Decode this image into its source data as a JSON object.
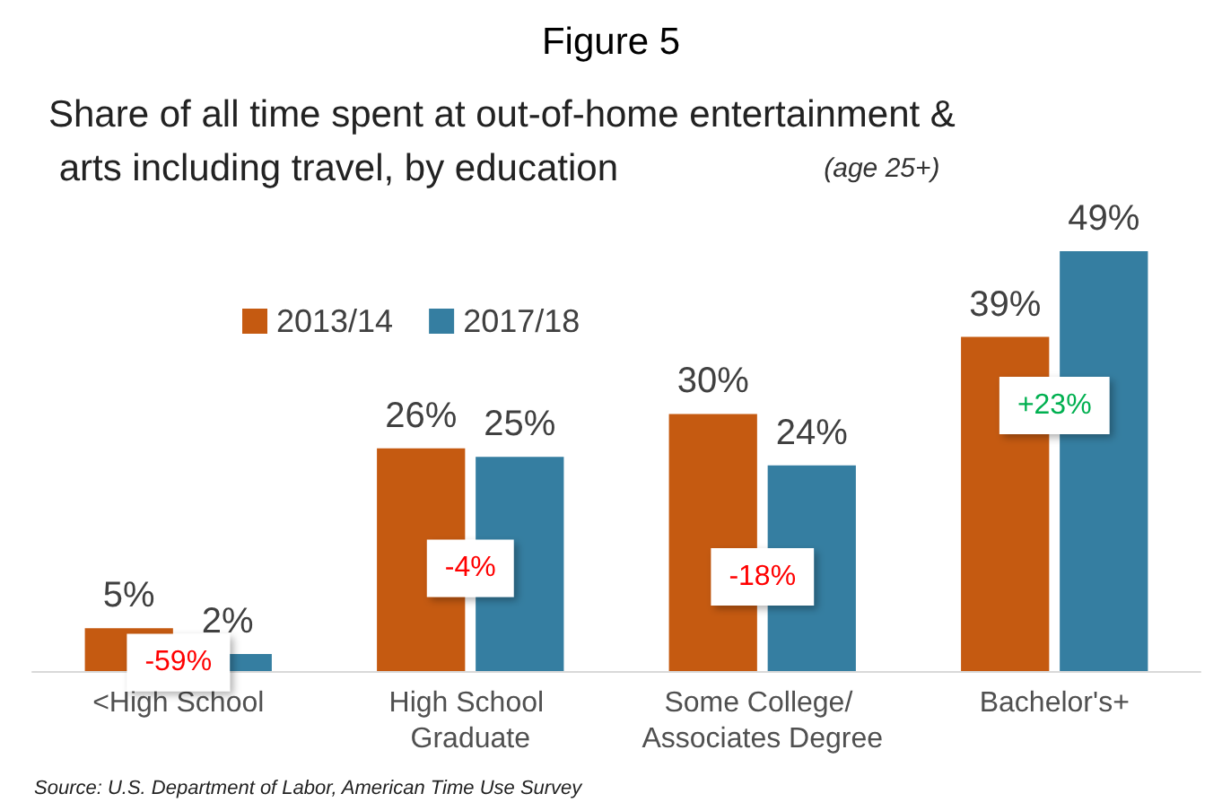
{
  "chart_data": {
    "type": "bar",
    "title": "Figure 5",
    "subtitle": "Share of all time spent at out-of-home entertainment & arts including travel, by education (age 25+)",
    "categories": [
      "<High School",
      "High School Graduate",
      "Some College/ Associates Degree",
      "Bachelor's+"
    ],
    "series": [
      {
        "name": "2013/14",
        "color": "#c55a11",
        "values": [
          5,
          26,
          30,
          39
        ],
        "value_labels": [
          "5%",
          "26%",
          "30%",
          "39%"
        ]
      },
      {
        "name": "2017/18",
        "color": "#357ea1",
        "values": [
          2,
          25,
          24,
          49
        ],
        "value_labels": [
          "2%",
          "25%",
          "24%",
          "49%"
        ]
      }
    ],
    "annotations": [
      {
        "text": "-59%",
        "x": "<High School",
        "y": 1
      },
      {
        "text": "-4%",
        "x": "High School Graduate",
        "y": 12
      },
      {
        "text": "-18%",
        "x": "Some College/ Associates Degree",
        "y": 11
      },
      {
        "text": "+23%",
        "x": "Bachelor's+",
        "y": 31
      },
      "Source: U.S. Department of Labor, American Time Use Survey"
    ],
    "legend": "top left"
  }
}
